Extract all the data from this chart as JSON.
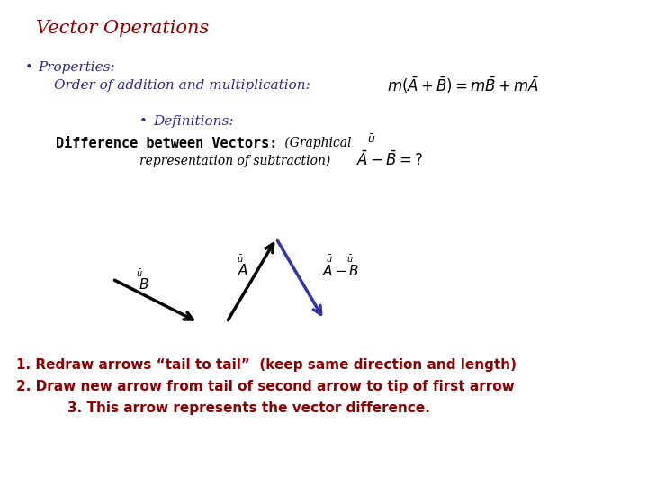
{
  "title": "Vector Operations",
  "title_color": "#8B0000",
  "title_fontsize": 15,
  "bg_color": "#FFFFFF",
  "bullet1_label": "Properties:",
  "bullet1_color": "#2B2B8B",
  "bullet1_fontsize": 11,
  "line1_text": "Order of addition and multiplication:",
  "line1_color": "#2B2B8B",
  "line1_fontsize": 11,
  "bullet2_label": "Definitions:",
  "bullet2_color": "#2B2B8B",
  "bullet2_fontsize": 11,
  "def_bold_text": "Difference between Vectors:",
  "def_bold_color": "#000000",
  "def_bold_fontsize": 11,
  "footer1": "1. Redraw arrows “tail to tail”  (keep same direction and length)",
  "footer2": "2. Draw new arrow from tail of second arrow to tip of first arrow",
  "footer3": "3. This arrow represents the vector difference.",
  "footer_color": "#8B0000",
  "footer_fontsize": 11
}
